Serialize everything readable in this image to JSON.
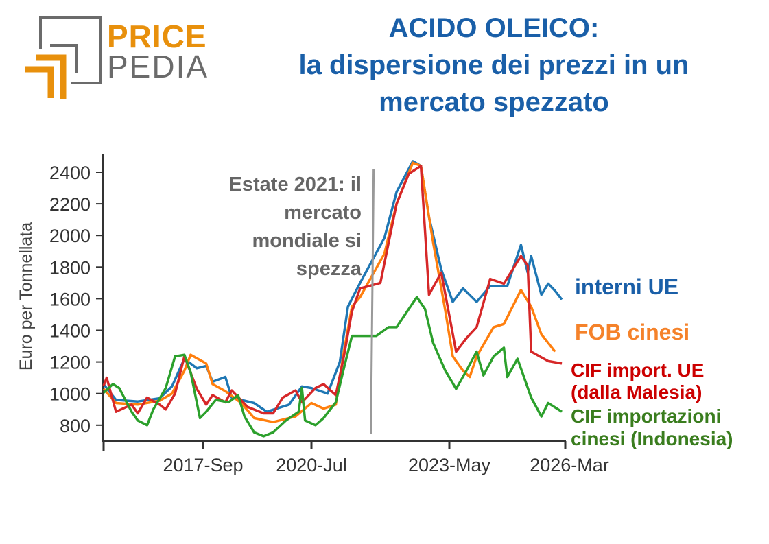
{
  "logo": {
    "line1": "PRICE",
    "line2": "PEDIA",
    "colors": {
      "orange": "#e8900c",
      "gray": "#6b6b6b"
    }
  },
  "title": {
    "line1": "ACIDO OLEICO:",
    "line2": "la dispersione dei prezzi in un",
    "line3": "mercato spezzato",
    "color": "#1a5fa8"
  },
  "chart_data": {
    "type": "line",
    "title": "ACIDO OLEICO: la dispersione dei prezzi in un mercato spezzato",
    "xlabel": "",
    "ylabel": "Euro per Tonnellata",
    "ylim": [
      700,
      2500
    ],
    "yticks": [
      800,
      1000,
      1200,
      1400,
      1600,
      1800,
      2000,
      2200,
      2400
    ],
    "xticks": [
      "2017-Sep",
      "2020-Jul",
      "2023-May",
      "2026-Mar"
    ],
    "grid": false,
    "legend": "right, labels at line ends",
    "annotation": {
      "x": "2021-10",
      "lines": [
        "Estate 2021: il",
        "mercato",
        "mondiale si",
        "spezza"
      ],
      "color": "#999999",
      "text_color": "#666666"
    },
    "series": [
      {
        "name": "interni UE",
        "color": "#1f77b4",
        "label_color": "#1a5fa8",
        "label_lines": [
          "interni UE"
        ],
        "points": [
          [
            "2015-01",
            1060
          ],
          [
            "2015-05",
            960
          ],
          [
            "2015-12",
            950
          ],
          [
            "2016-07",
            970
          ],
          [
            "2016-11",
            1045
          ],
          [
            "2017-03",
            1220
          ],
          [
            "2017-07",
            1160
          ],
          [
            "2017-10",
            1175
          ],
          [
            "2017-12",
            1075
          ],
          [
            "2018-04",
            1105
          ],
          [
            "2018-06",
            975
          ],
          [
            "2019-01",
            940
          ],
          [
            "2019-05",
            885
          ],
          [
            "2019-12",
            930
          ],
          [
            "2020-04",
            1045
          ],
          [
            "2020-07",
            1035
          ],
          [
            "2020-11",
            1000
          ],
          [
            "2021-02",
            1200
          ],
          [
            "2021-04",
            1550
          ],
          [
            "2021-07",
            1700
          ],
          [
            "2022-01",
            1985
          ],
          [
            "2022-04",
            2275
          ],
          [
            "2022-08",
            2470
          ],
          [
            "2022-10",
            2440
          ],
          [
            "2022-12",
            2115
          ],
          [
            "2023-03",
            1785
          ],
          [
            "2023-06",
            1580
          ],
          [
            "2023-09",
            1665
          ],
          [
            "2024-01",
            1580
          ],
          [
            "2024-05",
            1680
          ],
          [
            "2024-10",
            1680
          ],
          [
            "2025-02",
            1940
          ],
          [
            "2025-04",
            1765
          ],
          [
            "2025-05",
            1870
          ],
          [
            "2025-08",
            1625
          ],
          [
            "2025-10",
            1695
          ],
          [
            "2025-12",
            1650
          ],
          [
            "2026-02",
            1595
          ]
        ]
      },
      {
        "name": "FOB cinesi",
        "color": "#ff7f0e",
        "label_color": "#f5822a",
        "label_lines": [
          "FOB cinesi"
        ],
        "points": [
          [
            "2015-01",
            1030
          ],
          [
            "2015-05",
            940
          ],
          [
            "2015-12",
            930
          ],
          [
            "2016-07",
            955
          ],
          [
            "2016-11",
            1000
          ],
          [
            "2017-03",
            1145
          ],
          [
            "2017-05",
            1245
          ],
          [
            "2017-10",
            1190
          ],
          [
            "2017-12",
            1060
          ],
          [
            "2018-04",
            1015
          ],
          [
            "2018-09",
            940
          ],
          [
            "2019-01",
            845
          ],
          [
            "2019-07",
            820
          ],
          [
            "2020-02",
            855
          ],
          [
            "2020-07",
            940
          ],
          [
            "2020-10",
            905
          ],
          [
            "2021-01",
            930
          ],
          [
            "2021-03",
            1265
          ],
          [
            "2021-05",
            1550
          ],
          [
            "2021-07",
            1610
          ],
          [
            "2022-01",
            1885
          ],
          [
            "2022-04",
            2200
          ],
          [
            "2022-08",
            2460
          ],
          [
            "2022-10",
            2440
          ],
          [
            "2023-01",
            1955
          ],
          [
            "2023-04",
            1525
          ],
          [
            "2023-06",
            1235
          ],
          [
            "2023-09",
            1145
          ],
          [
            "2023-11",
            1105
          ],
          [
            "2024-01",
            1235
          ],
          [
            "2024-06",
            1420
          ],
          [
            "2024-09",
            1440
          ],
          [
            "2025-02",
            1655
          ],
          [
            "2025-05",
            1550
          ],
          [
            "2025-08",
            1375
          ],
          [
            "2025-12",
            1265
          ]
        ]
      },
      {
        "name": "CIF import. UE (dalla Malesia)",
        "color": "#d62728",
        "label_color": "#cc0000",
        "label_lines": [
          "CIF import. UE",
          "(dalla Malesia)"
        ],
        "points": [
          [
            "2015-01",
            1050
          ],
          [
            "2015-02",
            1100
          ],
          [
            "2015-05",
            885
          ],
          [
            "2015-10",
            930
          ],
          [
            "2015-12",
            875
          ],
          [
            "2016-03",
            975
          ],
          [
            "2016-07",
            930
          ],
          [
            "2016-09",
            900
          ],
          [
            "2016-12",
            1000
          ],
          [
            "2017-03",
            1235
          ],
          [
            "2017-07",
            1030
          ],
          [
            "2017-10",
            930
          ],
          [
            "2017-12",
            990
          ],
          [
            "2018-04",
            945
          ],
          [
            "2018-06",
            1020
          ],
          [
            "2018-11",
            915
          ],
          [
            "2019-04",
            875
          ],
          [
            "2019-07",
            875
          ],
          [
            "2019-10",
            975
          ],
          [
            "2020-02",
            1020
          ],
          [
            "2020-04",
            945
          ],
          [
            "2020-08",
            1035
          ],
          [
            "2020-10",
            1060
          ],
          [
            "2021-01",
            990
          ],
          [
            "2021-03",
            1235
          ],
          [
            "2021-05",
            1520
          ],
          [
            "2021-07",
            1665
          ],
          [
            "2021-12",
            1700
          ],
          [
            "2022-04",
            2200
          ],
          [
            "2022-07",
            2390
          ],
          [
            "2022-10",
            2440
          ],
          [
            "2022-12",
            1625
          ],
          [
            "2023-03",
            1765
          ],
          [
            "2023-07",
            1265
          ],
          [
            "2023-10",
            1350
          ],
          [
            "2024-01",
            1420
          ],
          [
            "2024-05",
            1725
          ],
          [
            "2024-09",
            1695
          ],
          [
            "2025-02",
            1870
          ],
          [
            "2025-04",
            1810
          ],
          [
            "2025-05",
            1265
          ],
          [
            "2025-10",
            1205
          ],
          [
            "2026-02",
            1190
          ]
        ]
      },
      {
        "name": "CIF importazioni cinesi (Indonesia)",
        "color": "#2ca02c",
        "label_color": "#3a7d1e",
        "label_lines": [
          "CIF importazioni",
          "cinesi (Indonesia)"
        ],
        "points": [
          [
            "2015-01",
            1005
          ],
          [
            "2015-04",
            1060
          ],
          [
            "2015-06",
            1035
          ],
          [
            "2015-10",
            885
          ],
          [
            "2015-12",
            830
          ],
          [
            "2016-03",
            800
          ],
          [
            "2016-05",
            900
          ],
          [
            "2016-09",
            1035
          ],
          [
            "2016-12",
            1235
          ],
          [
            "2017-03",
            1245
          ],
          [
            "2017-05",
            1135
          ],
          [
            "2017-08",
            845
          ],
          [
            "2017-10",
            885
          ],
          [
            "2018-01",
            960
          ],
          [
            "2018-05",
            945
          ],
          [
            "2018-08",
            990
          ],
          [
            "2018-10",
            855
          ],
          [
            "2019-01",
            755
          ],
          [
            "2019-04",
            730
          ],
          [
            "2019-07",
            755
          ],
          [
            "2019-11",
            830
          ],
          [
            "2020-03",
            885
          ],
          [
            "2020-04",
            1035
          ],
          [
            "2020-05",
            830
          ],
          [
            "2020-08",
            800
          ],
          [
            "2020-10",
            845
          ],
          [
            "2021-01",
            945
          ],
          [
            "2021-03",
            1160
          ],
          [
            "2021-05",
            1365
          ],
          [
            "2021-11",
            1365
          ],
          [
            "2022-02",
            1420
          ],
          [
            "2022-04",
            1420
          ],
          [
            "2022-07",
            1535
          ],
          [
            "2022-09",
            1610
          ],
          [
            "2022-11",
            1535
          ],
          [
            "2023-01",
            1320
          ],
          [
            "2023-04",
            1145
          ],
          [
            "2023-07",
            1030
          ],
          [
            "2023-10",
            1145
          ],
          [
            "2024-01",
            1265
          ],
          [
            "2024-03",
            1115
          ],
          [
            "2024-06",
            1235
          ],
          [
            "2024-09",
            1290
          ],
          [
            "2024-10",
            1105
          ],
          [
            "2025-01",
            1220
          ],
          [
            "2025-05",
            975
          ],
          [
            "2025-08",
            855
          ],
          [
            "2025-10",
            940
          ],
          [
            "2026-02",
            885
          ]
        ]
      }
    ]
  }
}
